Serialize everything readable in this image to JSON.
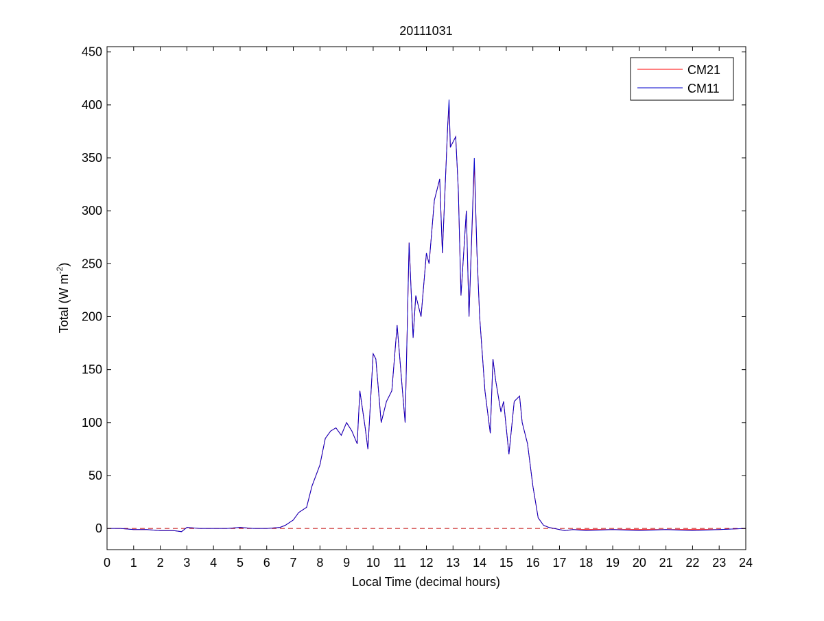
{
  "chart_data": {
    "type": "line",
    "title": "20111031",
    "xlabel": "Local Time (decimal hours)",
    "ylabel": "Total (W m",
    "ylabel_exponent": "-2",
    "ylabel_suffix": ")",
    "xlim": [
      0,
      24
    ],
    "ylim": [
      -20,
      455
    ],
    "xticks": [
      0,
      1,
      2,
      3,
      4,
      5,
      6,
      7,
      8,
      9,
      10,
      11,
      12,
      13,
      14,
      15,
      16,
      17,
      18,
      19,
      20,
      21,
      22,
      23,
      24
    ],
    "yticks": [
      0,
      50,
      100,
      150,
      200,
      250,
      300,
      350,
      400,
      450
    ],
    "grid": false,
    "legend_position": "top-right",
    "reference_line": {
      "y": 0,
      "style": "dashed",
      "color": "#c00000"
    },
    "series": [
      {
        "name": "CM21",
        "color": "#ff0000",
        "x": [
          0,
          0.5,
          1,
          1.5,
          2,
          2.5,
          2.8,
          3,
          3.5,
          4,
          4.5,
          5,
          5.5,
          6,
          6.5,
          6.7,
          7,
          7.2,
          7.5,
          7.7,
          8,
          8.2,
          8.4,
          8.6,
          8.8,
          9,
          9.2,
          9.4,
          9.5,
          9.7,
          9.8,
          10,
          10.1,
          10.3,
          10.5,
          10.7,
          10.9,
          11.1,
          11.2,
          11.35,
          11.5,
          11.6,
          11.8,
          12,
          12.1,
          12.3,
          12.5,
          12.6,
          12.8,
          12.85,
          12.9,
          13.1,
          13.2,
          13.3,
          13.5,
          13.6,
          13.8,
          13.9,
          14,
          14.2,
          14.4,
          14.5,
          14.6,
          14.8,
          14.9,
          15.1,
          15.3,
          15.5,
          15.6,
          15.8,
          16,
          16.2,
          16.4,
          16.6,
          16.8,
          17,
          17.2,
          17.5,
          18,
          19,
          20,
          21,
          22,
          23,
          24
        ],
        "y": [
          0,
          0,
          -1,
          -1,
          -2,
          -2,
          -3,
          1,
          0,
          0,
          0,
          1,
          0,
          0,
          1,
          3,
          8,
          15,
          20,
          40,
          60,
          85,
          92,
          95,
          88,
          100,
          92,
          80,
          130,
          95,
          75,
          165,
          160,
          100,
          120,
          130,
          192,
          130,
          100,
          270,
          180,
          220,
          200,
          260,
          250,
          310,
          330,
          260,
          380,
          400,
          360,
          370,
          320,
          220,
          300,
          200,
          345,
          260,
          200,
          130,
          90,
          160,
          140,
          110,
          120,
          70,
          120,
          125,
          100,
          80,
          40,
          10,
          3,
          1,
          0,
          -1,
          -2,
          -1,
          -1,
          -1,
          -1,
          -1,
          -1,
          -1,
          0
        ]
      },
      {
        "name": "CM11",
        "color": "#0000cc",
        "x": [
          0,
          0.5,
          1,
          1.5,
          2,
          2.5,
          2.8,
          3,
          3.5,
          4,
          4.5,
          5,
          5.5,
          6,
          6.5,
          6.7,
          7,
          7.2,
          7.5,
          7.7,
          8,
          8.2,
          8.4,
          8.6,
          8.8,
          9,
          9.2,
          9.4,
          9.5,
          9.7,
          9.8,
          10,
          10.1,
          10.3,
          10.5,
          10.7,
          10.9,
          11.1,
          11.2,
          11.35,
          11.5,
          11.6,
          11.8,
          12,
          12.1,
          12.3,
          12.5,
          12.6,
          12.8,
          12.85,
          12.9,
          13.1,
          13.2,
          13.3,
          13.5,
          13.6,
          13.8,
          13.9,
          14,
          14.2,
          14.4,
          14.5,
          14.6,
          14.8,
          14.9,
          15.1,
          15.3,
          15.5,
          15.6,
          15.8,
          16,
          16.2,
          16.4,
          16.6,
          16.8,
          17,
          17.2,
          17.5,
          18,
          19,
          20,
          21,
          22,
          23,
          24
        ],
        "y": [
          0,
          0,
          -1,
          -1,
          -2,
          -2,
          -3,
          1,
          0,
          0,
          0,
          1,
          0,
          0,
          1,
          3,
          8,
          15,
          20,
          40,
          60,
          85,
          92,
          95,
          88,
          100,
          92,
          80,
          130,
          95,
          75,
          165,
          160,
          100,
          120,
          130,
          192,
          130,
          100,
          270,
          180,
          220,
          200,
          260,
          250,
          310,
          330,
          260,
          380,
          405,
          360,
          370,
          320,
          220,
          300,
          200,
          350,
          260,
          200,
          130,
          90,
          160,
          140,
          110,
          120,
          70,
          120,
          125,
          100,
          80,
          40,
          10,
          3,
          1,
          0,
          -1,
          -2,
          -1,
          -2,
          -1,
          -2,
          -1,
          -2,
          -1,
          0
        ]
      }
    ]
  }
}
